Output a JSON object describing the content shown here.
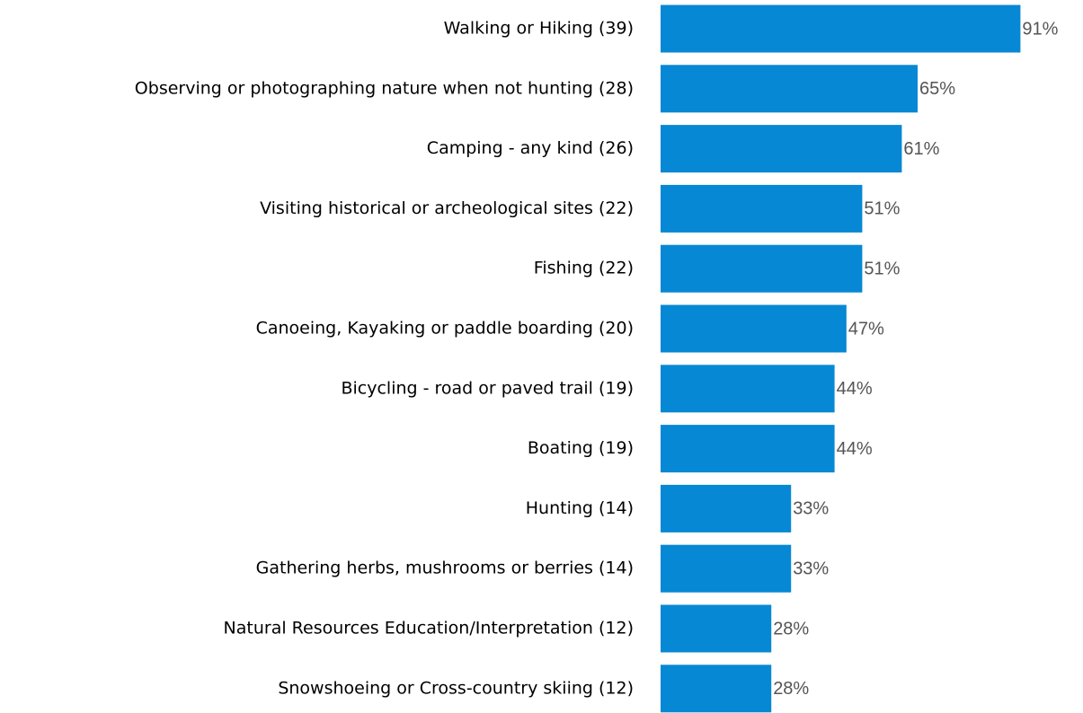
{
  "chart_data": {
    "type": "barh",
    "categories": [
      "Walking or Hiking (39)",
      "Observing or photographing nature when not hunting (28)",
      "Camping - any kind (26)",
      "Visiting historical or archeological sites (22)",
      "Fishing (22)",
      "Canoeing, Kayaking or paddle boarding (20)",
      "Bicycling - road or paved trail (19)",
      "Boating (19)",
      "Hunting (14)",
      "Gathering herbs, mushrooms or berries (14)",
      "Natural Resources Education/Interpretation (12)",
      "Snowshoeing or Cross-country skiing (12)"
    ],
    "values": [
      91,
      65,
      61,
      51,
      51,
      47,
      44,
      44,
      33,
      33,
      28,
      28
    ],
    "value_labels": [
      "91%",
      "65%",
      "61%",
      "51%",
      "51%",
      "47%",
      "44%",
      "44%",
      "33%",
      "33%",
      "28%",
      "28%"
    ],
    "color": "#0788d4",
    "xlim": [
      0,
      100
    ]
  }
}
